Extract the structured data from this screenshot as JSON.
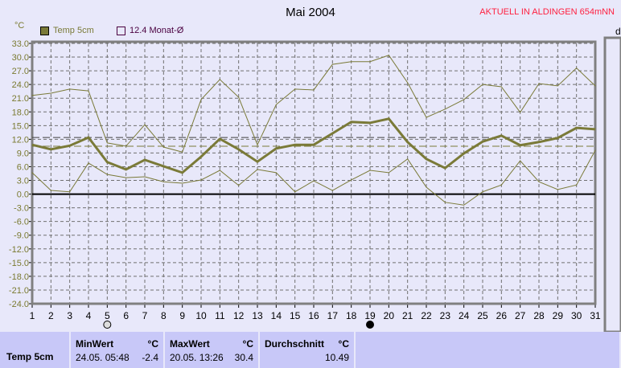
{
  "title": "Mai 2004",
  "subtitle": "AKTUELL IN ALDINGEN 654mNN",
  "right_label": "d",
  "legend": [
    {
      "label": "Temp 5cm",
      "color": "#7a7a38"
    },
    {
      "label": "12.4 Monat-Ø",
      "color": "#4a0040"
    }
  ],
  "chart_data": {
    "type": "line",
    "ylabel": "°C",
    "ylim": [
      -24,
      33
    ],
    "yticks": [
      "33.0",
      "30.0",
      "27.0",
      "24.0",
      "21.0",
      "18.0",
      "15.0",
      "12.0",
      "9.0",
      "6.0",
      "3.0",
      "0.0",
      "-3.0",
      "-6.0",
      "-9.0",
      "-12.0",
      "-15.0",
      "-18.0",
      "-21.0",
      "-24.0"
    ],
    "x": [
      1,
      2,
      3,
      4,
      5,
      6,
      7,
      8,
      9,
      10,
      11,
      12,
      13,
      14,
      15,
      16,
      17,
      18,
      19,
      20,
      21,
      22,
      23,
      24,
      25,
      26,
      27,
      28,
      29,
      30,
      31
    ],
    "grid": true,
    "series": [
      {
        "role": "mean",
        "color": "#7a7a38",
        "values": [
          10.8,
          9.8,
          10.6,
          12.4,
          7.0,
          5.4,
          7.5,
          6.1,
          4.7,
          8.2,
          12.1,
          9.8,
          7.1,
          10.0,
          10.8,
          10.8,
          13.3,
          15.8,
          15.6,
          16.5,
          11.4,
          7.7,
          5.7,
          8.9,
          11.5,
          12.8,
          10.7,
          11.4,
          12.3,
          14.5,
          14.2
        ]
      },
      {
        "role": "max",
        "color": "#7a7a38",
        "values": [
          21.6,
          22.1,
          23.0,
          22.6,
          11.2,
          10.5,
          15.2,
          10.3,
          9.2,
          20.7,
          25.1,
          21.2,
          10.8,
          19.6,
          23.0,
          22.8,
          28.4,
          29.0,
          29.0,
          30.4,
          24.4,
          16.8,
          18.6,
          20.7,
          24.0,
          23.5,
          17.9,
          24.2,
          23.7,
          27.6,
          23.7
        ]
      },
      {
        "role": "min",
        "color": "#7a7a38",
        "values": [
          4.7,
          0.8,
          0.5,
          6.8,
          4.3,
          3.6,
          3.8,
          2.7,
          2.4,
          3.1,
          5.2,
          1.9,
          5.4,
          4.7,
          0.5,
          2.9,
          0.8,
          3.1,
          5.2,
          4.7,
          7.7,
          1.5,
          -1.8,
          -2.4,
          0.5,
          2.0,
          7.3,
          2.7,
          1.0,
          2.0,
          9.6
        ]
      }
    ],
    "reference_lines": [
      {
        "value": 12.4,
        "color": "#404040"
      },
      {
        "value": 10.49,
        "color": "#7a7a38"
      }
    ],
    "moon_markers": [
      {
        "day": 5,
        "phase": "full-moon"
      },
      {
        "day": 19,
        "phase": "new-moon"
      }
    ]
  },
  "table": {
    "row_label": "Temp 5cm",
    "min": {
      "header": "MinWert",
      "unit": "°C",
      "time": "24.05.  05:48",
      "value": "-2.4"
    },
    "max": {
      "header": "MaxWert",
      "unit": "°C",
      "time": "20.05.  13:26",
      "value": "30.4"
    },
    "avg": {
      "header": "Durchschnitt",
      "unit": "°C",
      "value": "10.49"
    }
  }
}
